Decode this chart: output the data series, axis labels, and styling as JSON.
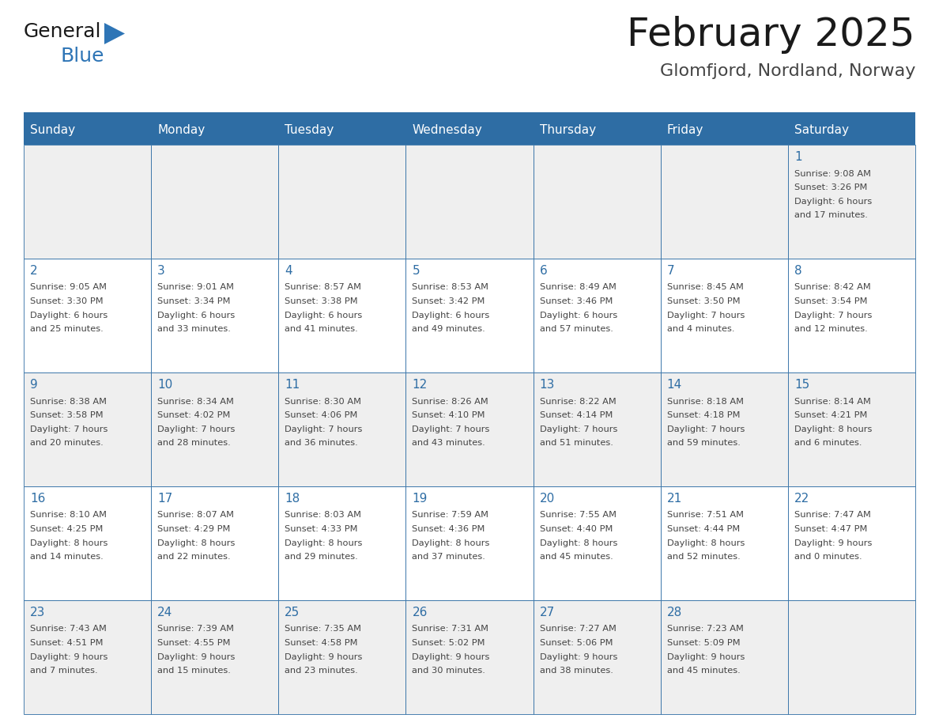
{
  "title": "February 2025",
  "subtitle": "Glomfjord, Nordland, Norway",
  "days_of_week": [
    "Sunday",
    "Monday",
    "Tuesday",
    "Wednesday",
    "Thursday",
    "Friday",
    "Saturday"
  ],
  "header_bg": "#2E6DA4",
  "header_text": "#FFFFFF",
  "cell_bg_odd": "#EFEFEF",
  "cell_bg_even": "#FFFFFF",
  "border_color": "#2E6DA4",
  "text_color": "#444444",
  "day_num_color": "#2E6DA4",
  "title_color": "#1A1A1A",
  "subtitle_color": "#444444",
  "separator_color": "#2E6DA4",
  "calendar": [
    [
      null,
      null,
      null,
      null,
      null,
      null,
      {
        "day": 1,
        "sunrise": "9:08 AM",
        "sunset": "3:26 PM",
        "daylight": "6 hours and 17 minutes."
      }
    ],
    [
      {
        "day": 2,
        "sunrise": "9:05 AM",
        "sunset": "3:30 PM",
        "daylight": "6 hours and 25 minutes."
      },
      {
        "day": 3,
        "sunrise": "9:01 AM",
        "sunset": "3:34 PM",
        "daylight": "6 hours and 33 minutes."
      },
      {
        "day": 4,
        "sunrise": "8:57 AM",
        "sunset": "3:38 PM",
        "daylight": "6 hours and 41 minutes."
      },
      {
        "day": 5,
        "sunrise": "8:53 AM",
        "sunset": "3:42 PM",
        "daylight": "6 hours and 49 minutes."
      },
      {
        "day": 6,
        "sunrise": "8:49 AM",
        "sunset": "3:46 PM",
        "daylight": "6 hours and 57 minutes."
      },
      {
        "day": 7,
        "sunrise": "8:45 AM",
        "sunset": "3:50 PM",
        "daylight": "7 hours and 4 minutes."
      },
      {
        "day": 8,
        "sunrise": "8:42 AM",
        "sunset": "3:54 PM",
        "daylight": "7 hours and 12 minutes."
      }
    ],
    [
      {
        "day": 9,
        "sunrise": "8:38 AM",
        "sunset": "3:58 PM",
        "daylight": "7 hours and 20 minutes."
      },
      {
        "day": 10,
        "sunrise": "8:34 AM",
        "sunset": "4:02 PM",
        "daylight": "7 hours and 28 minutes."
      },
      {
        "day": 11,
        "sunrise": "8:30 AM",
        "sunset": "4:06 PM",
        "daylight": "7 hours and 36 minutes."
      },
      {
        "day": 12,
        "sunrise": "8:26 AM",
        "sunset": "4:10 PM",
        "daylight": "7 hours and 43 minutes."
      },
      {
        "day": 13,
        "sunrise": "8:22 AM",
        "sunset": "4:14 PM",
        "daylight": "7 hours and 51 minutes."
      },
      {
        "day": 14,
        "sunrise": "8:18 AM",
        "sunset": "4:18 PM",
        "daylight": "7 hours and 59 minutes."
      },
      {
        "day": 15,
        "sunrise": "8:14 AM",
        "sunset": "4:21 PM",
        "daylight": "8 hours and 6 minutes."
      }
    ],
    [
      {
        "day": 16,
        "sunrise": "8:10 AM",
        "sunset": "4:25 PM",
        "daylight": "8 hours and 14 minutes."
      },
      {
        "day": 17,
        "sunrise": "8:07 AM",
        "sunset": "4:29 PM",
        "daylight": "8 hours and 22 minutes."
      },
      {
        "day": 18,
        "sunrise": "8:03 AM",
        "sunset": "4:33 PM",
        "daylight": "8 hours and 29 minutes."
      },
      {
        "day": 19,
        "sunrise": "7:59 AM",
        "sunset": "4:36 PM",
        "daylight": "8 hours and 37 minutes."
      },
      {
        "day": 20,
        "sunrise": "7:55 AM",
        "sunset": "4:40 PM",
        "daylight": "8 hours and 45 minutes."
      },
      {
        "day": 21,
        "sunrise": "7:51 AM",
        "sunset": "4:44 PM",
        "daylight": "8 hours and 52 minutes."
      },
      {
        "day": 22,
        "sunrise": "7:47 AM",
        "sunset": "4:47 PM",
        "daylight": "9 hours and 0 minutes."
      }
    ],
    [
      {
        "day": 23,
        "sunrise": "7:43 AM",
        "sunset": "4:51 PM",
        "daylight": "9 hours and 7 minutes."
      },
      {
        "day": 24,
        "sunrise": "7:39 AM",
        "sunset": "4:55 PM",
        "daylight": "9 hours and 15 minutes."
      },
      {
        "day": 25,
        "sunrise": "7:35 AM",
        "sunset": "4:58 PM",
        "daylight": "9 hours and 23 minutes."
      },
      {
        "day": 26,
        "sunrise": "7:31 AM",
        "sunset": "5:02 PM",
        "daylight": "9 hours and 30 minutes."
      },
      {
        "day": 27,
        "sunrise": "7:27 AM",
        "sunset": "5:06 PM",
        "daylight": "9 hours and 38 minutes."
      },
      {
        "day": 28,
        "sunrise": "7:23 AM",
        "sunset": "5:09 PM",
        "daylight": "9 hours and 45 minutes."
      },
      null
    ]
  ],
  "logo_text1": "General",
  "logo_text2": "Blue",
  "logo_triangle_color": "#2E75B6"
}
